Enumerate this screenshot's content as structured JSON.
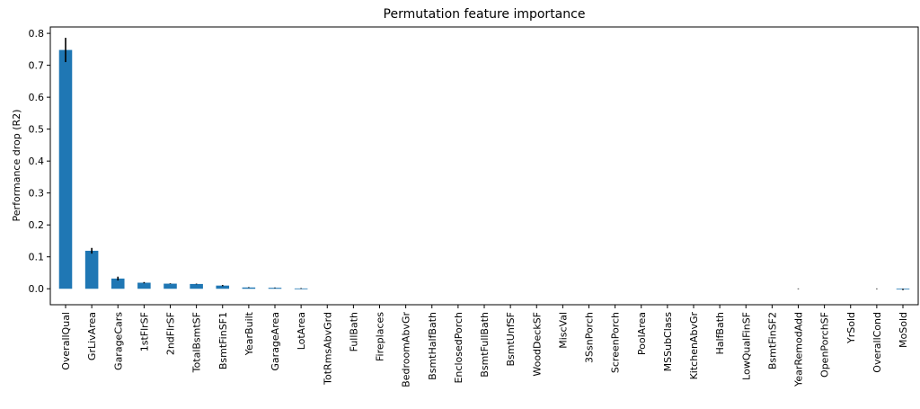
{
  "chart_data": {
    "type": "bar",
    "title": "Permutation feature importance",
    "xlabel": "",
    "ylabel": "Performance drop (R2)",
    "ylim": [
      -0.05,
      0.82
    ],
    "yticks": [
      0.0,
      0.1,
      0.2,
      0.3,
      0.4,
      0.5,
      0.6,
      0.7,
      0.8
    ],
    "ytick_labels": [
      "0.0",
      "0.1",
      "0.2",
      "0.3",
      "0.4",
      "0.5",
      "0.6",
      "0.7",
      "0.8"
    ],
    "grid": false,
    "legend": "none",
    "bar_color": "#1f77b4",
    "error_color": "#000000",
    "categories": [
      "OverallQual",
      "GrLivArea",
      "GarageCars",
      "1stFlrSF",
      "2ndFlrSF",
      "TotalBsmtSF",
      "BsmtFinSF1",
      "YearBuilt",
      "GarageArea",
      "LotArea",
      "TotRmsAbvGrd",
      "FullBath",
      "Fireplaces",
      "BedroomAbvGr",
      "BsmtHalfBath",
      "EnclosedPorch",
      "BsmtFullBath",
      "BsmtUnfSF",
      "WoodDeckSF",
      "MiscVal",
      "3SsnPorch",
      "ScreenPorch",
      "PoolArea",
      "MSSubClass",
      "KitchenAbvGr",
      "HalfBath",
      "LowQualFinSF",
      "BsmtFinSF2",
      "YearRemodAdd",
      "OpenPorchSF",
      "YrSold",
      "OverallCond",
      "MoSold"
    ],
    "values": [
      0.748,
      0.119,
      0.032,
      0.019,
      0.016,
      0.015,
      0.01,
      0.004,
      0.003,
      0.001,
      0.0,
      0.0,
      0.0,
      0.0,
      0.0,
      0.0,
      0.0,
      0.0,
      0.0,
      0.0,
      0.0,
      0.0,
      0.0,
      0.0,
      0.0,
      0.0,
      0.0,
      0.0,
      0.0,
      0.0,
      0.0,
      0.0,
      -0.002
    ],
    "errors": [
      0.038,
      0.009,
      0.006,
      0.002,
      0.001,
      0.001,
      0.002,
      0.001,
      0.001,
      0.001,
      0.0,
      0.0,
      0.0,
      0.0,
      0.0,
      0.0,
      0.0,
      0.0,
      0.0,
      0.0,
      0.0,
      0.0,
      0.0,
      0.0,
      0.0,
      0.0,
      0.0,
      0.0,
      0.001,
      0.0,
      0.0,
      0.001,
      0.002
    ]
  }
}
